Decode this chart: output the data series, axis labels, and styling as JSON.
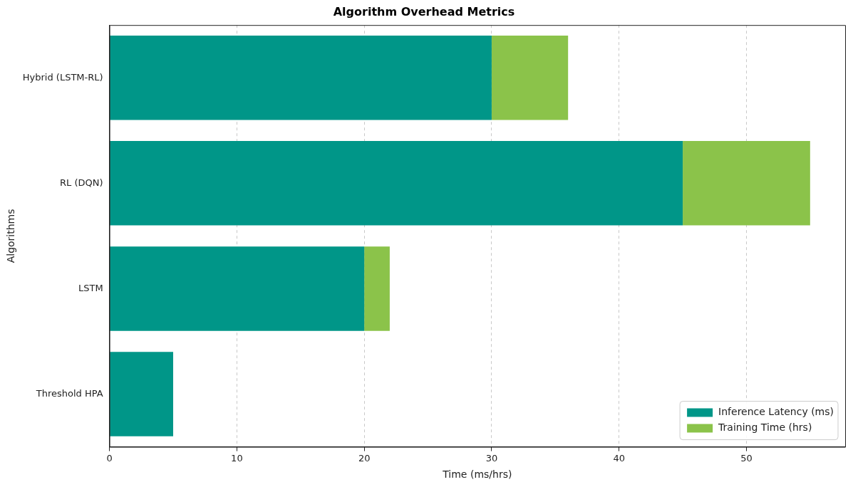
{
  "chart_data": {
    "type": "bar",
    "orientation": "horizontal",
    "stacked": true,
    "title": "Algorithm Overhead Metrics",
    "xlabel": "Time (ms/hrs)",
    "ylabel": "Algorithms",
    "categories": [
      "Hybrid (LSTM-RL)",
      "RL (DQN)",
      "LSTM",
      "Threshold HPA"
    ],
    "series": [
      {
        "name": "Inference Latency (ms)",
        "color": "#009688",
        "values": [
          30,
          45,
          20,
          5
        ]
      },
      {
        "name": "Training Time (hrs)",
        "color": "#8bc34a",
        "values": [
          6,
          10,
          2,
          0
        ]
      }
    ],
    "xlim": [
      0,
      57.75
    ],
    "xticks": [
      0,
      10,
      20,
      30,
      40,
      50
    ],
    "grid": "x",
    "line_style": "dashed",
    "legend": "bottom right"
  }
}
